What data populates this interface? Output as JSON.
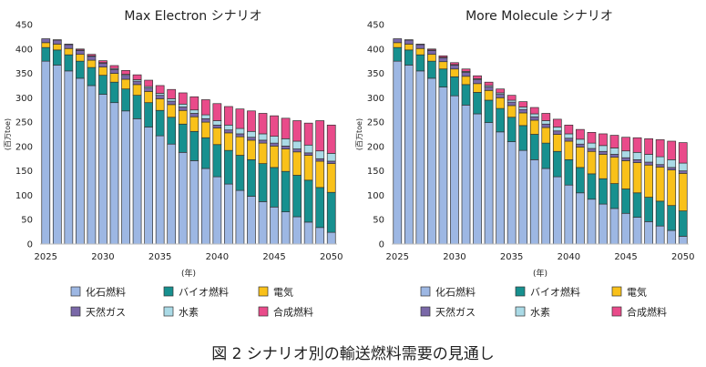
{
  "figure_caption": "図 2 シナリオ別の輸送燃料需要の見通し",
  "chart_data": [
    {
      "type": "bar",
      "stacked": true,
      "title": "Max Electron シナリオ",
      "ylabel": "(百万toe)",
      "xlabel": "(年)",
      "ylim": [
        0,
        450
      ],
      "yticks": [
        0,
        50,
        100,
        150,
        200,
        250,
        300,
        350,
        400,
        450
      ],
      "xtick_labels": [
        "2025",
        "2030",
        "2035",
        "2040",
        "2045",
        "2050"
      ],
      "categories": [
        "2025",
        "2026",
        "2027",
        "2028",
        "2029",
        "2030",
        "2031",
        "2032",
        "2033",
        "2034",
        "2035",
        "2036",
        "2037",
        "2038",
        "2039",
        "2040",
        "2041",
        "2042",
        "2043",
        "2044",
        "2045",
        "2046",
        "2047",
        "2048",
        "2049",
        "2050"
      ],
      "series": [
        {
          "name": "化石燃料",
          "color": "#9DB7E3",
          "values": [
            375,
            367,
            355,
            340,
            325,
            307,
            290,
            273,
            257,
            240,
            222,
            205,
            188,
            171,
            155,
            138,
            123,
            110,
            98,
            87,
            76,
            66,
            56,
            45,
            34,
            24
          ]
        },
        {
          "name": "バイオ燃料",
          "color": "#17908F",
          "values": [
            28,
            31,
            33,
            35,
            37,
            39,
            42,
            45,
            48,
            50,
            52,
            55,
            58,
            60,
            63,
            66,
            69,
            72,
            75,
            78,
            81,
            83,
            85,
            86,
            82,
            82
          ]
        },
        {
          "name": "電気",
          "color": "#F9C11A",
          "values": [
            10,
            12,
            13,
            14,
            15,
            17,
            18,
            20,
            22,
            23,
            24,
            26,
            28,
            30,
            32,
            34,
            36,
            38,
            40,
            42,
            44,
            46,
            48,
            51,
            54,
            59
          ]
        },
        {
          "name": "天然ガス",
          "color": "#7A68A8",
          "values": [
            8,
            8,
            8,
            8,
            8,
            8,
            8,
            8,
            7,
            7,
            7,
            7,
            7,
            7,
            7,
            6,
            6,
            6,
            6,
            6,
            6,
            6,
            6,
            5,
            5,
            5
          ]
        },
        {
          "name": "水素",
          "color": "#AADAE6",
          "values": [
            0,
            0,
            0,
            1,
            1,
            1,
            2,
            2,
            3,
            3,
            4,
            5,
            6,
            7,
            8,
            9,
            10,
            11,
            12,
            13,
            14,
            15,
            16,
            16,
            16,
            16
          ]
        },
        {
          "name": "合成燃料",
          "color": "#E94B8A",
          "values": [
            0,
            1,
            1,
            2,
            3,
            4,
            6,
            8,
            10,
            13,
            16,
            19,
            23,
            27,
            31,
            35,
            38,
            40,
            42,
            42,
            42,
            42,
            42,
            45,
            62,
            58
          ]
        }
      ]
    },
    {
      "type": "bar",
      "stacked": true,
      "title": "More Molecule シナリオ",
      "ylabel": "(百万toe)",
      "xlabel": "(年)",
      "ylim": [
        0,
        450
      ],
      "yticks": [
        0,
        50,
        100,
        150,
        200,
        250,
        300,
        350,
        400,
        450
      ],
      "xtick_labels": [
        "2025",
        "2030",
        "2035",
        "2040",
        "2045",
        "2050"
      ],
      "categories": [
        "2025",
        "2026",
        "2027",
        "2028",
        "2029",
        "2030",
        "2031",
        "2032",
        "2033",
        "2034",
        "2035",
        "2036",
        "2037",
        "2038",
        "2039",
        "2040",
        "2041",
        "2042",
        "2043",
        "2044",
        "2045",
        "2046",
        "2047",
        "2048",
        "2049",
        "2050"
      ],
      "series": [
        {
          "name": "化石燃料",
          "color": "#9DB7E3",
          "values": [
            375,
            367,
            355,
            340,
            322,
            304,
            285,
            267,
            249,
            230,
            210,
            192,
            173,
            155,
            138,
            121,
            105,
            92,
            82,
            73,
            63,
            55,
            46,
            37,
            28,
            16
          ]
        },
        {
          "name": "バイオ燃料",
          "color": "#17908F",
          "values": [
            28,
            31,
            33,
            35,
            37,
            39,
            42,
            44,
            46,
            48,
            50,
            51,
            52,
            52,
            52,
            52,
            52,
            52,
            52,
            51,
            50,
            50,
            50,
            51,
            51,
            52
          ]
        },
        {
          "name": "電気",
          "color": "#F9C11A",
          "values": [
            10,
            12,
            13,
            14,
            15,
            16,
            17,
            18,
            20,
            22,
            24,
            26,
            29,
            32,
            35,
            38,
            42,
            46,
            50,
            54,
            58,
            62,
            66,
            70,
            73,
            77
          ]
        },
        {
          "name": "天然ガス",
          "color": "#7A68A8",
          "values": [
            8,
            8,
            8,
            8,
            8,
            8,
            8,
            8,
            7,
            7,
            7,
            7,
            7,
            7,
            7,
            6,
            6,
            6,
            6,
            6,
            6,
            6,
            6,
            5,
            5,
            5
          ]
        },
        {
          "name": "水素",
          "color": "#AADAE6",
          "values": [
            0,
            0,
            0,
            1,
            1,
            1,
            2,
            2,
            3,
            3,
            4,
            5,
            6,
            7,
            8,
            9,
            10,
            11,
            12,
            13,
            14,
            15,
            16,
            16,
            16,
            16
          ]
        },
        {
          "name": "合成燃料",
          "color": "#E94B8A",
          "values": [
            0,
            1,
            1,
            2,
            3,
            4,
            5,
            6,
            7,
            8,
            10,
            11,
            13,
            15,
            16,
            18,
            20,
            22,
            24,
            26,
            28,
            30,
            32,
            35,
            38,
            42
          ]
        }
      ]
    }
  ]
}
